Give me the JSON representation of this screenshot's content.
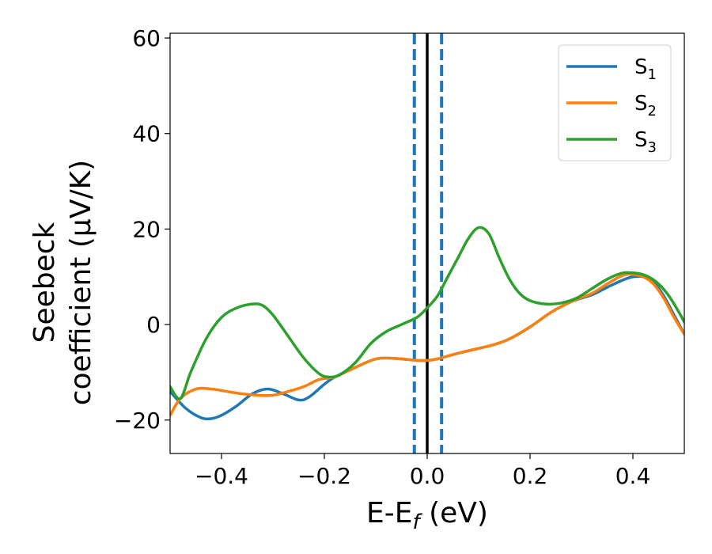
{
  "chart_data": {
    "type": "line",
    "xlabel": {
      "main": "E-E",
      "sub": "f",
      "unit": " (eV)"
    },
    "ylabel": {
      "line1": "Seebeck",
      "line2": "coefficient  (μV/K)"
    },
    "xlim": [
      -0.5,
      0.5
    ],
    "ylim": [
      -27,
      61
    ],
    "x_ticks": [
      -0.4,
      -0.2,
      0.0,
      0.2,
      0.4
    ],
    "x_tick_labels": [
      "−0.4",
      "−0.2",
      "0.0",
      "0.2",
      "0.4"
    ],
    "y_ticks": [
      -20,
      0,
      20,
      40,
      60
    ],
    "y_tick_labels": [
      "−20",
      "0",
      "20",
      "40",
      "60"
    ],
    "grid": false,
    "legend_position": "top-right",
    "vertical_lines": [
      {
        "x": -0.025,
        "style": "dashed",
        "color": "#1f77b4"
      },
      {
        "x": 0.0,
        "style": "solid",
        "color": "#000000"
      },
      {
        "x": 0.028,
        "style": "dashed",
        "color": "#1f77b4"
      }
    ],
    "series": [
      {
        "name": "S",
        "sub": "1",
        "color": "#1f77b4",
        "points": [
          [
            -0.5,
            -14
          ],
          [
            -0.47,
            -17.5
          ],
          [
            -0.44,
            -19.5
          ],
          [
            -0.42,
            -19.7
          ],
          [
            -0.4,
            -19
          ],
          [
            -0.37,
            -17
          ],
          [
            -0.34,
            -14.5
          ],
          [
            -0.31,
            -13.5
          ],
          [
            -0.28,
            -14.5
          ],
          [
            -0.25,
            -15.8
          ],
          [
            -0.23,
            -15.2
          ],
          [
            -0.2,
            -12.5
          ],
          [
            -0.18,
            -11
          ],
          [
            -0.15,
            -9.5
          ],
          [
            -0.12,
            -8
          ],
          [
            -0.1,
            -7.2
          ],
          [
            -0.08,
            -7
          ],
          [
            -0.05,
            -7.2
          ],
          [
            -0.02,
            -7.5
          ],
          [
            0.0,
            -7.5
          ],
          [
            0.02,
            -7.2
          ],
          [
            0.05,
            -6.3
          ],
          [
            0.08,
            -5.5
          ],
          [
            0.1,
            -5
          ],
          [
            0.13,
            -4.2
          ],
          [
            0.16,
            -3
          ],
          [
            0.2,
            -0.5
          ],
          [
            0.24,
            2.5
          ],
          [
            0.28,
            4.8
          ],
          [
            0.32,
            6.2
          ],
          [
            0.35,
            7.8
          ],
          [
            0.38,
            9.3
          ],
          [
            0.4,
            10
          ],
          [
            0.42,
            10
          ],
          [
            0.44,
            9
          ],
          [
            0.46,
            6
          ],
          [
            0.48,
            2
          ],
          [
            0.5,
            -2
          ]
        ]
      },
      {
        "name": "S",
        "sub": "2",
        "color": "#ff7f0e",
        "points": [
          [
            -0.5,
            -19
          ],
          [
            -0.48,
            -15.5
          ],
          [
            -0.45,
            -13.5
          ],
          [
            -0.42,
            -13.5
          ],
          [
            -0.39,
            -14
          ],
          [
            -0.36,
            -14.5
          ],
          [
            -0.33,
            -14.8
          ],
          [
            -0.3,
            -14.8
          ],
          [
            -0.27,
            -14
          ],
          [
            -0.24,
            -13
          ],
          [
            -0.21,
            -11.5
          ],
          [
            -0.18,
            -11
          ],
          [
            -0.15,
            -9.5
          ],
          [
            -0.12,
            -8
          ],
          [
            -0.1,
            -7.2
          ],
          [
            -0.08,
            -7
          ],
          [
            -0.05,
            -7.2
          ],
          [
            -0.02,
            -7.5
          ],
          [
            0.0,
            -7.5
          ],
          [
            0.02,
            -7.2
          ],
          [
            0.05,
            -6.3
          ],
          [
            0.08,
            -5.5
          ],
          [
            0.1,
            -5
          ],
          [
            0.13,
            -4.2
          ],
          [
            0.16,
            -3
          ],
          [
            0.2,
            -0.5
          ],
          [
            0.24,
            2.5
          ],
          [
            0.28,
            4.8
          ],
          [
            0.32,
            6.5
          ],
          [
            0.35,
            8.5
          ],
          [
            0.38,
            10.3
          ],
          [
            0.4,
            10.5
          ],
          [
            0.42,
            10
          ],
          [
            0.44,
            8.5
          ],
          [
            0.46,
            5.5
          ],
          [
            0.48,
            1.5
          ],
          [
            0.5,
            -2
          ]
        ]
      },
      {
        "name": "S",
        "sub": "3",
        "color": "#2ca02c",
        "points": [
          [
            -0.5,
            -13
          ],
          [
            -0.48,
            -15.5
          ],
          [
            -0.46,
            -10
          ],
          [
            -0.43,
            -3
          ],
          [
            -0.4,
            1.5
          ],
          [
            -0.37,
            3.5
          ],
          [
            -0.34,
            4.3
          ],
          [
            -0.32,
            4
          ],
          [
            -0.3,
            2
          ],
          [
            -0.27,
            -2.5
          ],
          [
            -0.24,
            -7
          ],
          [
            -0.21,
            -10.3
          ],
          [
            -0.19,
            -11
          ],
          [
            -0.17,
            -10.5
          ],
          [
            -0.14,
            -8
          ],
          [
            -0.11,
            -4
          ],
          [
            -0.08,
            -1.5
          ],
          [
            -0.05,
            0
          ],
          [
            -0.02,
            1.5
          ],
          [
            0.0,
            3.5
          ],
          [
            0.02,
            6
          ],
          [
            0.04,
            10
          ],
          [
            0.06,
            14
          ],
          [
            0.08,
            18
          ],
          [
            0.1,
            20.3
          ],
          [
            0.12,
            19
          ],
          [
            0.14,
            14
          ],
          [
            0.16,
            9.5
          ],
          [
            0.18,
            6.5
          ],
          [
            0.2,
            5
          ],
          [
            0.23,
            4.3
          ],
          [
            0.26,
            4.5
          ],
          [
            0.29,
            5.5
          ],
          [
            0.32,
            7.5
          ],
          [
            0.35,
            9.5
          ],
          [
            0.38,
            10.8
          ],
          [
            0.41,
            10.7
          ],
          [
            0.43,
            10
          ],
          [
            0.45,
            8.5
          ],
          [
            0.47,
            6
          ],
          [
            0.49,
            2.5
          ],
          [
            0.5,
            0.5
          ]
        ]
      }
    ]
  }
}
